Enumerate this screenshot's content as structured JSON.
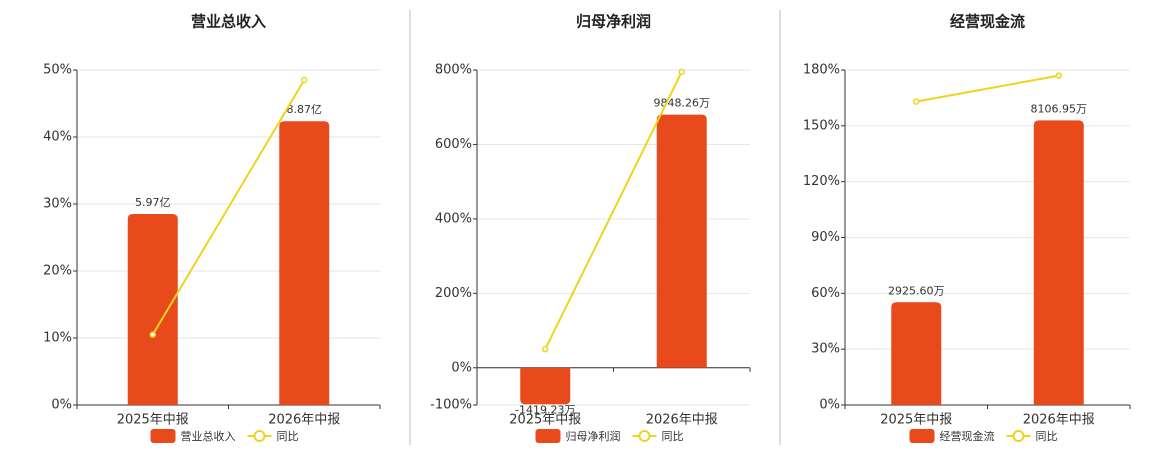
{
  "chart_data": [
    {
      "type": "bar",
      "title": "营业总收入",
      "categories": [
        "2025年中报",
        "2026年中报"
      ],
      "series": [
        {
          "name": "营业总收入",
          "color": "#e84a1c",
          "values": [
            5.97,
            8.87
          ],
          "value_labels": [
            "5.97亿",
            "8.87亿"
          ],
          "axis": "y2"
        },
        {
          "name": "同比",
          "color": "#f0d31e",
          "type": "line",
          "values": [
            10.5,
            48.5
          ]
        }
      ],
      "ylim": [
        0,
        50
      ],
      "yticks": [
        {
          "value": 0,
          "label": "0%"
        },
        {
          "value": 10,
          "label": "10%"
        },
        {
          "value": 20,
          "label": "20%"
        },
        {
          "value": 30,
          "label": "30%"
        },
        {
          "value": 40,
          "label": "40%"
        },
        {
          "value": 50,
          "label": "50%"
        }
      ],
      "y2lim": [
        0,
        10.47
      ],
      "grid": true
    },
    {
      "type": "bar",
      "title": "归母净利润",
      "categories": [
        "2025年中报",
        "2026年中报"
      ],
      "series": [
        {
          "name": "归母净利润",
          "color": "#e84a1c",
          "values": [
            -1419.23,
            9848.26
          ],
          "value_labels": [
            "-1419.23万",
            "9848.26万"
          ],
          "axis": "y2"
        },
        {
          "name": "同比",
          "color": "#f0d31e",
          "type": "line",
          "values": [
            50,
            795
          ]
        }
      ],
      "ylim": [
        -100,
        800
      ],
      "yticks": [
        {
          "value": -100,
          "label": "-100%"
        },
        {
          "value": 0,
          "label": "0%"
        },
        {
          "value": 200,
          "label": "200%"
        },
        {
          "value": 400,
          "label": "400%"
        },
        {
          "value": 600,
          "label": "600%"
        },
        {
          "value": 800,
          "label": "800%"
        }
      ],
      "y2lim": [
        -1448,
        11585
      ],
      "grid": true
    },
    {
      "type": "bar",
      "title": "经营现金流",
      "categories": [
        "2025年中报",
        "2026年中报"
      ],
      "series": [
        {
          "name": "经营现金流",
          "color": "#e84a1c",
          "values": [
            2925.6,
            8106.95
          ],
          "value_labels": [
            "2925.60万",
            "8106.95万"
          ],
          "axis": "y2"
        },
        {
          "name": "同比",
          "color": "#f0d31e",
          "type": "line",
          "values": [
            163,
            177
          ]
        }
      ],
      "ylim": [
        0,
        180
      ],
      "yticks": [
        {
          "value": 0,
          "label": "0%"
        },
        {
          "value": 30,
          "label": "30%"
        },
        {
          "value": 60,
          "label": "60%"
        },
        {
          "value": 90,
          "label": "90%"
        },
        {
          "value": 120,
          "label": "120%"
        },
        {
          "value": 150,
          "label": "150%"
        },
        {
          "value": 180,
          "label": "180%"
        }
      ],
      "y2lim": [
        0,
        9540
      ],
      "grid": true
    }
  ]
}
